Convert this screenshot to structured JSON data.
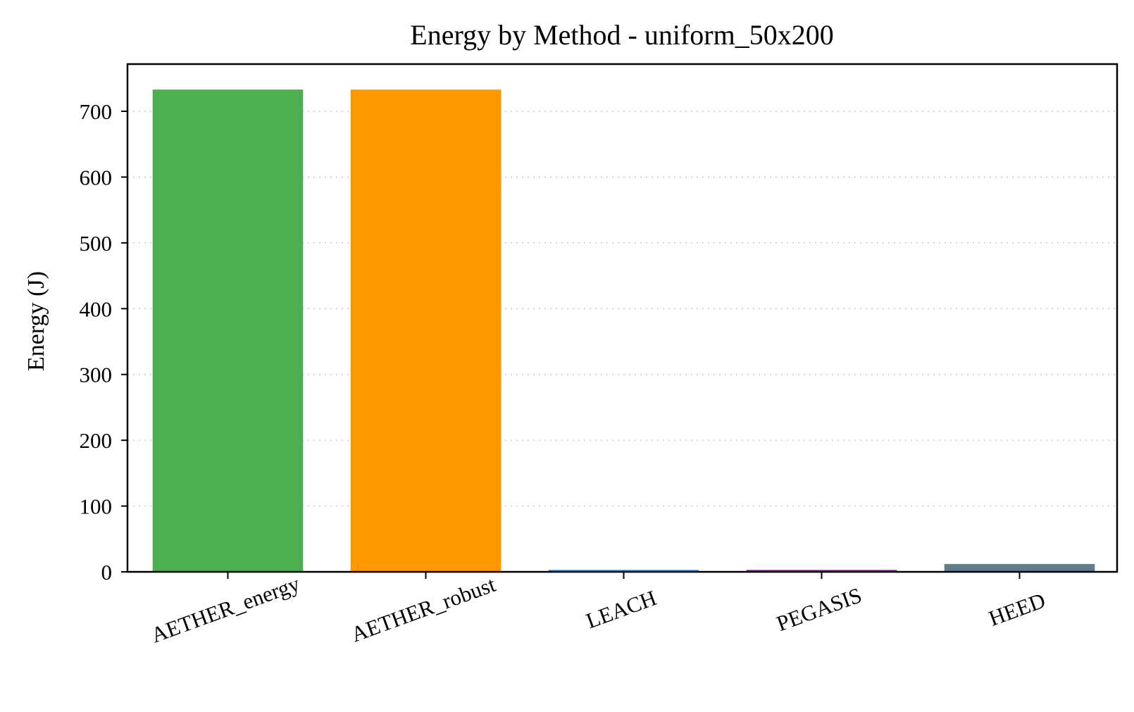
{
  "chart_data": {
    "type": "bar",
    "title": "Energy by Method - uniform_50x200",
    "xlabel": "",
    "ylabel": "Energy (J)",
    "categories": [
      "AETHER_energy",
      "AETHER_robust",
      "LEACH",
      "PEGASIS",
      "HEED"
    ],
    "values": [
      733,
      733,
      3,
      3,
      12
    ],
    "colors": [
      "#4caf50",
      "#ff9800",
      "#2196f3",
      "#9c27b0",
      "#607d8b"
    ],
    "ylim": [
      0,
      770
    ],
    "yticks": [
      0,
      100,
      200,
      300,
      400,
      500,
      600,
      700
    ],
    "ytick_labels": [
      "0",
      "100",
      "200",
      "300",
      "400",
      "500",
      "600",
      "700"
    ],
    "grid": "y-dotted",
    "legend": "none"
  }
}
